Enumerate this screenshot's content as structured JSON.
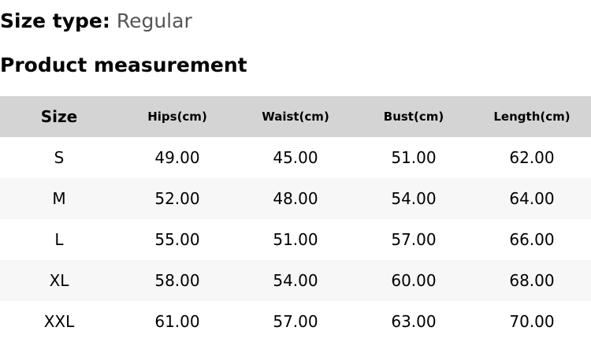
{
  "size_type": {
    "label": "Size type:",
    "value": "Regular"
  },
  "section_title": "Product measurement",
  "table": {
    "headers": [
      "Size",
      "Hips(cm)",
      "Waist(cm)",
      "Bust(cm)",
      "Length(cm)"
    ],
    "rows": [
      [
        "S",
        "49.00",
        "45.00",
        "51.00",
        "62.00"
      ],
      [
        "M",
        "52.00",
        "48.00",
        "54.00",
        "64.00"
      ],
      [
        "L",
        "55.00",
        "51.00",
        "57.00",
        "66.00"
      ],
      [
        "XL",
        "58.00",
        "54.00",
        "60.00",
        "68.00"
      ],
      [
        "XXL",
        "61.00",
        "57.00",
        "63.00",
        "70.00"
      ]
    ]
  }
}
